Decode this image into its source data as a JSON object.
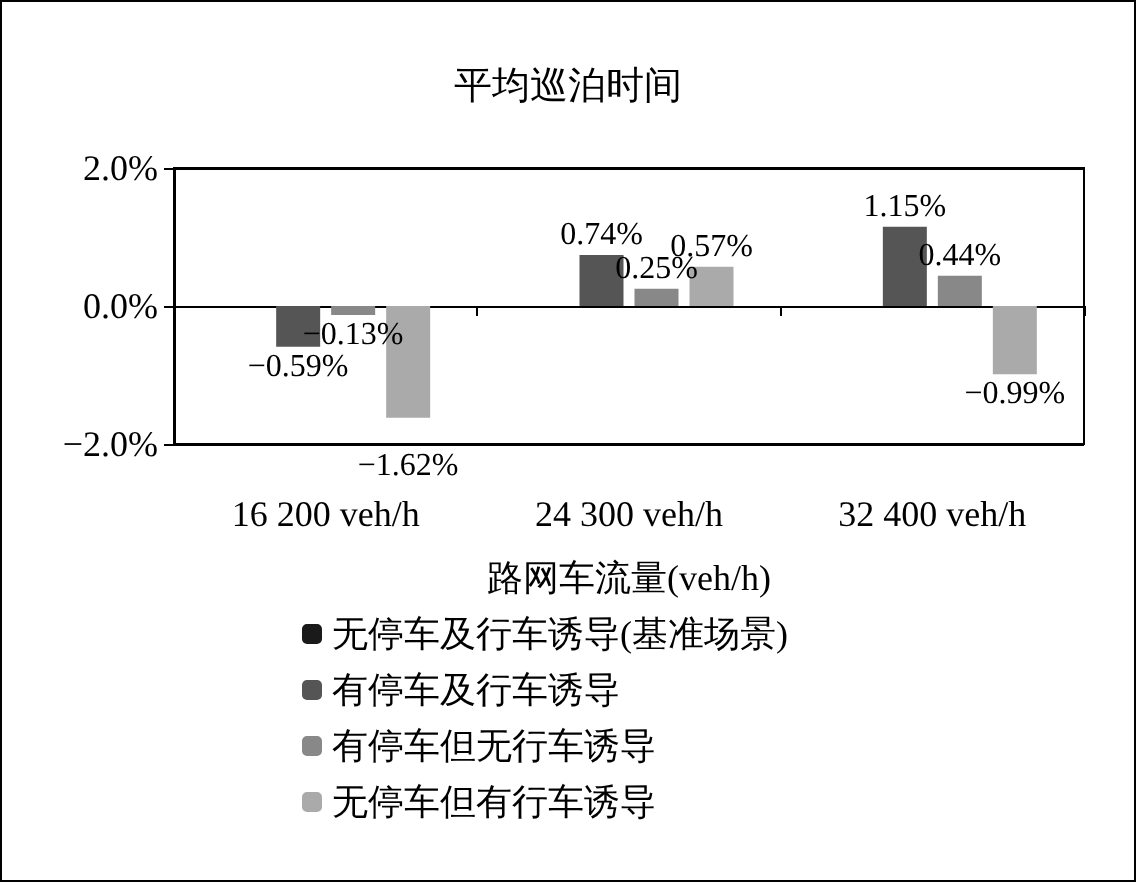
{
  "chart_data": {
    "type": "bar",
    "title": "平均巡泊时间",
    "xlabel": "路网车流量(veh/h)",
    "categories": [
      "16 200 veh/h",
      "24 300 veh/h",
      "32 400 veh/h"
    ],
    "series": [
      {
        "name": "无停车及行车诱导(基准场景)",
        "color": "#1a1a1a",
        "values": [
          0,
          0,
          0
        ],
        "value_labels": [
          null,
          null,
          null
        ]
      },
      {
        "name": "有停车及行车诱导",
        "color": "#555555",
        "values": [
          -0.59,
          0.74,
          1.15
        ],
        "value_labels": [
          "−0.59%",
          "0.74%",
          "1.15%"
        ]
      },
      {
        "name": "有停车但无行车诱导",
        "color": "#888888",
        "values": [
          -0.13,
          0.25,
          0.44
        ],
        "value_labels": [
          "−0.13%",
          "0.25%",
          "0.44%"
        ]
      },
      {
        "name": "无停车但有行车诱导",
        "color": "#aaaaaa",
        "values": [
          -1.62,
          0.57,
          -0.99
        ],
        "value_labels": [
          "−1.62%",
          "0.57%",
          "−0.99%"
        ]
      }
    ],
    "ylim": [
      -2,
      2
    ],
    "yticks": [
      {
        "value": -2,
        "label": "−2.0%"
      },
      {
        "value": 0,
        "label": "0.0%"
      },
      {
        "value": 2,
        "label": "2.0%"
      }
    ],
    "grid": "y",
    "legend": "bottom"
  }
}
